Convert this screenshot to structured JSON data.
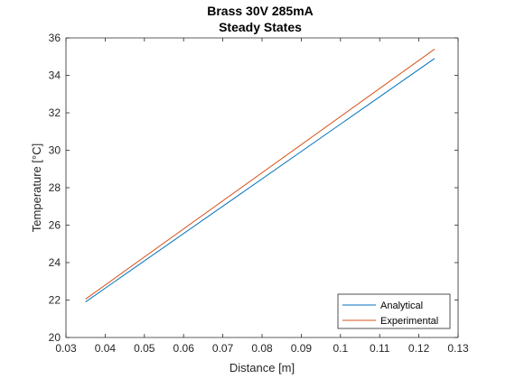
{
  "chart_data": {
    "type": "line",
    "title": "Brass 30V 285mA",
    "subtitle": "Steady States",
    "xlabel": "Distance [m]",
    "ylabel": "Temperature [°C]",
    "xlim": [
      0.03,
      0.13
    ],
    "ylim": [
      20,
      36
    ],
    "xticks": [
      0.03,
      0.04,
      0.05,
      0.06,
      0.07,
      0.08,
      0.09,
      0.1,
      0.11,
      0.12,
      0.13
    ],
    "xtick_labels": [
      "0.03",
      "0.04",
      "0.05",
      "0.06",
      "0.07",
      "0.08",
      "0.09",
      "0.1",
      "0.11",
      "0.12",
      "0.13"
    ],
    "yticks": [
      20,
      22,
      24,
      26,
      28,
      30,
      32,
      34,
      36
    ],
    "ytick_labels": [
      "20",
      "22",
      "24",
      "26",
      "28",
      "30",
      "32",
      "34",
      "36"
    ],
    "grid": false,
    "legend_position": "bottom-right",
    "series": [
      {
        "name": "Analytical",
        "color": "#0072BD",
        "x": [
          0.035,
          0.124
        ],
        "y": [
          21.9,
          34.9
        ]
      },
      {
        "name": "Experimental",
        "color": "#D95319",
        "x": [
          0.035,
          0.124
        ],
        "y": [
          22.05,
          35.4
        ]
      }
    ]
  }
}
